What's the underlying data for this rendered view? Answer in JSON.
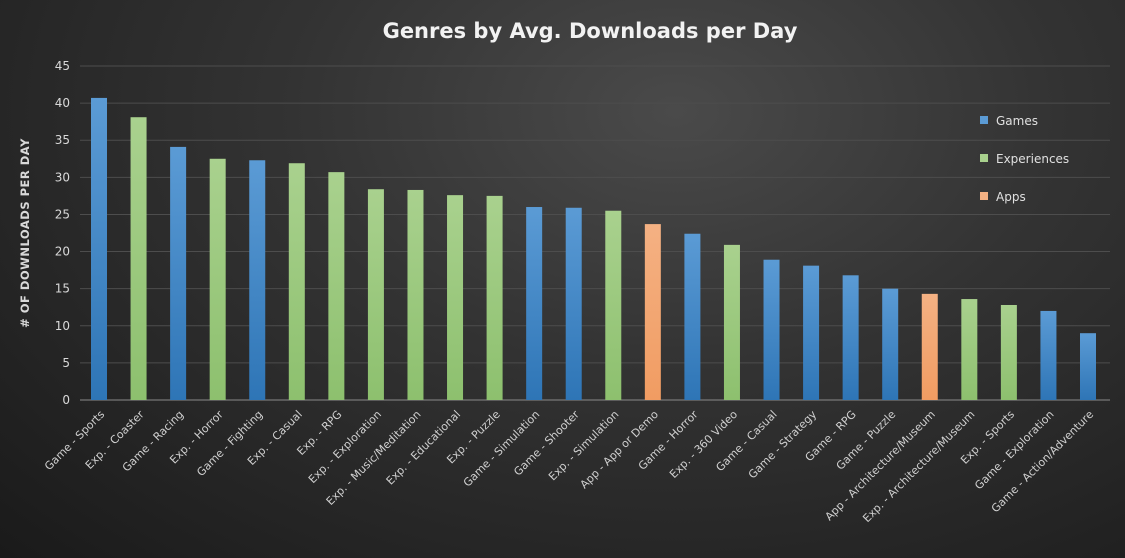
{
  "chart_data": {
    "type": "bar",
    "title": "Genres by Avg. Downloads per Day",
    "xlabel": "",
    "ylabel": "# OF DOWNLOADS PER DAY",
    "ylim": [
      0,
      45
    ],
    "yticks": [
      0,
      5,
      10,
      15,
      20,
      25,
      30,
      35,
      40,
      45
    ],
    "grid": true,
    "legend_placement": "right",
    "legend": [
      {
        "name": "Games",
        "color": "#5B9BD5"
      },
      {
        "name": "Experiences",
        "color": "#A9D18E"
      },
      {
        "name": "Apps",
        "color": "#F4B183"
      }
    ],
    "categories": [
      "Game - Sports",
      "Exp. - Coaster",
      "Game - Racing",
      "Exp. - Horror",
      "Game - Fighting",
      "Exp. - Casual",
      "Exp. - RPG",
      "Exp. - Exploration",
      "Exp. - Music/Meditation",
      "Exp. - Educational",
      "Exp. - Puzzle",
      "Game - Simulation",
      "Game - Shooter",
      "Exp. - Simulation",
      "App - App or Demo",
      "Game - Horror",
      "Exp. - 360 Video",
      "Game - Casual",
      "Game - Strategy",
      "Game - RPG",
      "Game - Puzzle",
      "App - Architecture/Museum",
      "Exp. - Architecture/Museum",
      "Exp. - Sports",
      "Game - Exploration",
      "Game - Action/Adventure"
    ],
    "groups": [
      "Games",
      "Experiences",
      "Games",
      "Experiences",
      "Games",
      "Experiences",
      "Experiences",
      "Experiences",
      "Experiences",
      "Experiences",
      "Experiences",
      "Games",
      "Games",
      "Experiences",
      "Apps",
      "Games",
      "Experiences",
      "Games",
      "Games",
      "Games",
      "Games",
      "Apps",
      "Experiences",
      "Experiences",
      "Games",
      "Games"
    ],
    "values": [
      40.7,
      38.1,
      34.1,
      32.5,
      32.3,
      31.9,
      30.7,
      28.4,
      28.3,
      27.6,
      27.5,
      26.0,
      25.9,
      25.5,
      23.7,
      22.4,
      20.9,
      18.9,
      18.1,
      16.8,
      15.0,
      14.3,
      13.6,
      12.8,
      12.0,
      9.0
    ]
  }
}
